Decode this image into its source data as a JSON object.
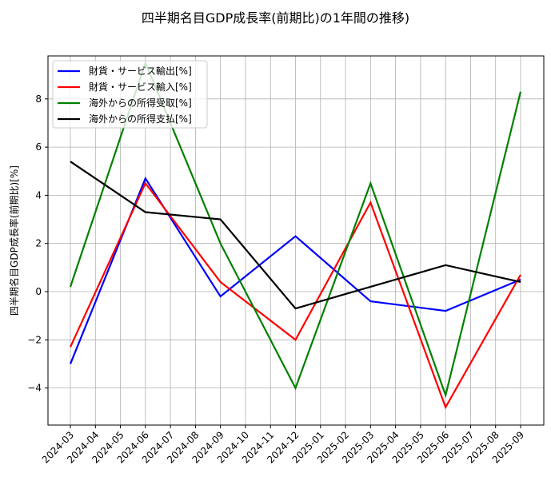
{
  "chart_data": {
    "type": "line",
    "title": "四半期名目GDP成長率(前期比)の1年間の推移)",
    "xlabel": "",
    "ylabel": "四半期名目GDP成長率(前期比)[%]",
    "x_ticks": [
      "2024-03",
      "2024-04",
      "2024-05",
      "2024-06",
      "2024-07",
      "2024-08",
      "2024-09",
      "2024-10",
      "2024-11",
      "2024-12",
      "2025-01",
      "2025-02",
      "2025-03",
      "2025-04",
      "2025-05",
      "2025-06",
      "2025-07",
      "2025-08",
      "2025-09"
    ],
    "x": [
      "2024-03",
      "2024-06",
      "2024-09",
      "2024-12",
      "2025-03",
      "2025-06",
      "2025-09"
    ],
    "y_ticks": [
      -4,
      -2,
      0,
      2,
      4,
      6,
      8
    ],
    "ylim": [
      -5.5,
      9.8
    ],
    "grid": true,
    "legend_position": "upper left",
    "series": [
      {
        "name": "財貨・サービス輸出[%]",
        "color": "#0000ff",
        "values": [
          -3.0,
          4.7,
          -0.2,
          2.3,
          -0.4,
          -0.8,
          0.5
        ]
      },
      {
        "name": "財貨・サービス輸入[%]",
        "color": "#ff0000",
        "values": [
          -2.3,
          4.5,
          0.4,
          -2.0,
          3.7,
          -4.8,
          0.7
        ]
      },
      {
        "name": "海外からの所得受取[%]",
        "color": "#008000",
        "values": [
          0.2,
          9.5,
          2.0,
          -4.0,
          4.5,
          -4.3,
          8.3
        ]
      },
      {
        "name": "海外からの所得支払[%]",
        "color": "#000000",
        "values": [
          5.4,
          3.3,
          3.0,
          -0.7,
          0.2,
          1.1,
          0.4
        ]
      }
    ]
  }
}
